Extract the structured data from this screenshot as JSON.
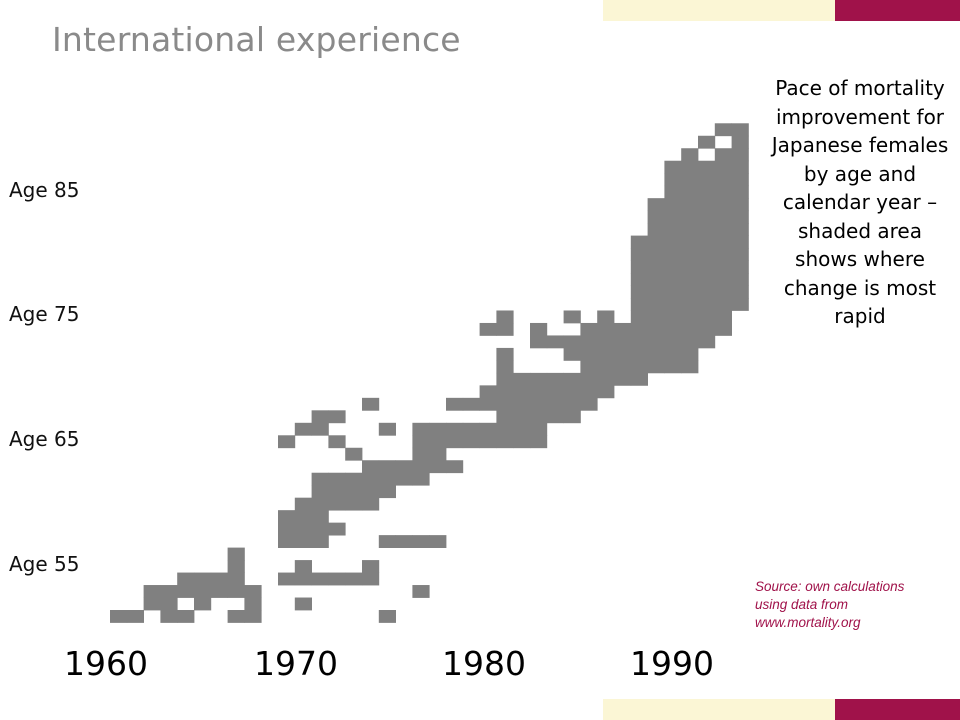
{
  "slide": {
    "title": "International experience",
    "caption": "Pace of mortality improvement for Japanese females by age and calendar year – shaded area shows where change is most rapid",
    "source": "Source: own calculations using data from www.mortality.org"
  },
  "colors": {
    "background": "#ffffff",
    "shade": "#808080",
    "band_cream": "#fbf6d5",
    "band_maroon": "#a0124a",
    "title": "#8a8a8a",
    "source_text": "#a0124a"
  },
  "chart_data": {
    "type": "heatmap",
    "title": "Pace of mortality improvement for Japanese females by age and calendar year – shaded area shows where change is most rapid",
    "xlabel": "",
    "ylabel": "",
    "x_tick_labels": [
      "1960",
      "1970",
      "1980",
      "1990"
    ],
    "y_tick_labels": [
      "Age 55",
      "Age 65",
      "Age 75",
      "Age 85"
    ],
    "x_range": [
      1958,
      1995
    ],
    "y_range": [
      50,
      89
    ],
    "grid": false,
    "legend": "none",
    "value_meaning": "1 = shaded (most rapid improvement)",
    "shaded_cells": [
      {
        "age": 50,
        "years": [
          1958,
          1959,
          1961,
          1962,
          1965,
          1966,
          1974
        ]
      },
      {
        "age": 51,
        "years": [
          1960,
          1961,
          1963,
          1966,
          1969
        ]
      },
      {
        "age": 52,
        "years": [
          1960,
          1961,
          1962,
          1963,
          1964,
          1965,
          1966,
          1976
        ]
      },
      {
        "age": 53,
        "years": [
          1962,
          1963,
          1964,
          1965,
          1968,
          1969,
          1970,
          1971,
          1972,
          1973
        ]
      },
      {
        "age": 54,
        "years": [
          1965,
          1969,
          1973
        ]
      },
      {
        "age": 55,
        "years": [
          1965
        ]
      },
      {
        "age": 56,
        "years": [
          1968,
          1969,
          1970,
          1974,
          1975,
          1976,
          1977
        ]
      },
      {
        "age": 57,
        "years": [
          1968,
          1969,
          1970,
          1971
        ]
      },
      {
        "age": 58,
        "years": [
          1968,
          1969,
          1970
        ]
      },
      {
        "age": 59,
        "years": [
          1969,
          1970,
          1971,
          1972,
          1973
        ]
      },
      {
        "age": 60,
        "years": [
          1970,
          1971,
          1972,
          1973,
          1974
        ]
      },
      {
        "age": 61,
        "years": [
          1970,
          1971,
          1972,
          1973,
          1974,
          1975,
          1976
        ]
      },
      {
        "age": 62,
        "years": [
          1973,
          1974,
          1975,
          1976,
          1977,
          1978
        ]
      },
      {
        "age": 63,
        "years": [
          1972,
          1976,
          1977
        ]
      },
      {
        "age": 64,
        "years": [
          1968,
          1971,
          1976,
          1977,
          1978,
          1979,
          1980,
          1981,
          1982,
          1983
        ]
      },
      {
        "age": 65,
        "years": [
          1969,
          1970,
          1974,
          1976,
          1977,
          1978,
          1979,
          1980,
          1981,
          1982,
          1983
        ]
      },
      {
        "age": 66,
        "years": [
          1970,
          1971,
          1981,
          1982,
          1983,
          1984,
          1985
        ]
      },
      {
        "age": 67,
        "years": [
          1973,
          1978,
          1979,
          1980,
          1981,
          1982,
          1983,
          1984,
          1985,
          1986
        ]
      },
      {
        "age": 68,
        "years": [
          1980,
          1981,
          1982,
          1983,
          1984,
          1985,
          1986,
          1987
        ]
      },
      {
        "age": 69,
        "years": [
          1981,
          1982,
          1983,
          1984,
          1985,
          1986,
          1987,
          1988,
          1989
        ]
      },
      {
        "age": 70,
        "years": [
          1981,
          1986,
          1987,
          1988,
          1989,
          1990,
          1991,
          1992
        ]
      },
      {
        "age": 71,
        "years": [
          1981,
          1985,
          1986,
          1987,
          1988,
          1989,
          1990,
          1991,
          1992
        ]
      },
      {
        "age": 72,
        "years": [
          1983,
          1984,
          1985,
          1986,
          1987,
          1988,
          1989,
          1990,
          1991,
          1992,
          1993
        ]
      },
      {
        "age": 73,
        "years": [
          1980,
          1981,
          1983,
          1986,
          1987,
          1988,
          1989,
          1990,
          1991,
          1992,
          1993,
          1994
        ]
      },
      {
        "age": 74,
        "years": [
          1981,
          1985,
          1987,
          1989,
          1990,
          1991,
          1992,
          1993,
          1994
        ]
      },
      {
        "age": 75,
        "years": [
          1989,
          1990,
          1991,
          1992,
          1993,
          1994,
          1995
        ]
      },
      {
        "age": 76,
        "years": [
          1989,
          1990,
          1991,
          1992,
          1993,
          1994,
          1995
        ]
      },
      {
        "age": 77,
        "years": [
          1989,
          1990,
          1991,
          1992,
          1993,
          1994,
          1995
        ]
      },
      {
        "age": 78,
        "years": [
          1989,
          1990,
          1991,
          1992,
          1993,
          1994,
          1995
        ]
      },
      {
        "age": 79,
        "years": [
          1989,
          1990,
          1991,
          1992,
          1993,
          1994,
          1995
        ]
      },
      {
        "age": 80,
        "years": [
          1989,
          1990,
          1991,
          1992,
          1993,
          1994,
          1995
        ]
      },
      {
        "age": 81,
        "years": [
          1990,
          1991,
          1992,
          1993,
          1994,
          1995
        ]
      },
      {
        "age": 82,
        "years": [
          1990,
          1991,
          1992,
          1993,
          1994,
          1995
        ]
      },
      {
        "age": 83,
        "years": [
          1990,
          1991,
          1992,
          1993,
          1994,
          1995
        ]
      },
      {
        "age": 84,
        "years": [
          1991,
          1992,
          1993,
          1994,
          1995
        ]
      },
      {
        "age": 85,
        "years": [
          1991,
          1992,
          1993,
          1994,
          1995
        ]
      },
      {
        "age": 86,
        "years": [
          1991,
          1992,
          1993,
          1994,
          1995
        ]
      },
      {
        "age": 87,
        "years": [
          1992,
          1994,
          1995
        ]
      },
      {
        "age": 88,
        "years": [
          1993,
          1995
        ]
      },
      {
        "age": 89,
        "years": [
          1994,
          1995
        ]
      }
    ]
  }
}
